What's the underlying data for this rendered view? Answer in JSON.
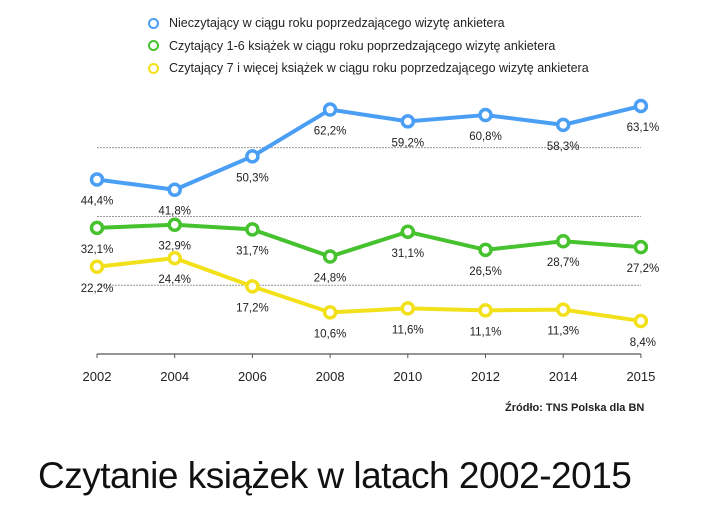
{
  "chart_data": {
    "type": "line",
    "title": "Czytanie książek w latach 2002-2015",
    "source": "Źródło: TNS Polska dla BN",
    "categories": [
      "2002",
      "2004",
      "2006",
      "2008",
      "2010",
      "2012",
      "2014",
      "2015"
    ],
    "ylim": [
      0,
      70
    ],
    "grid": true,
    "legend_position": "top",
    "series": [
      {
        "name": "Nieczytający w ciągu roku poprzedzającego wizytę ankietera",
        "color": "#4a9ff5",
        "values": [
          44.4,
          41.8,
          50.3,
          62.2,
          59.2,
          60.8,
          58.3,
          63.1
        ],
        "labels": [
          "44,4%",
          "41,8%",
          "50,3%",
          "62,2%",
          "59,2%",
          "60,8%",
          "58,3%",
          "63,1%"
        ]
      },
      {
        "name": "Czytający 1-6 książek w ciągu roku poprzedzającego wizytę ankietera",
        "color": "#45c22e",
        "values": [
          32.1,
          32.9,
          31.7,
          24.8,
          31.1,
          26.5,
          28.7,
          27.2
        ],
        "labels": [
          "32,1%",
          "32,9%",
          "31,7%",
          "24,8%",
          "31,1%",
          "26,5%",
          "28,7%",
          "27,2%"
        ]
      },
      {
        "name": "Czytający 7 i więcej książek w ciągu roku poprzedzającego wizytę ankietera",
        "color": "#f2e11a",
        "values": [
          22.2,
          24.4,
          17.2,
          10.6,
          11.6,
          11.1,
          11.3,
          8.4
        ],
        "labels": [
          "22,2%",
          "24,4%",
          "17,2%",
          "10,6%",
          "11,6%",
          "11,1%",
          "11,3%",
          "8,4%"
        ]
      }
    ]
  }
}
